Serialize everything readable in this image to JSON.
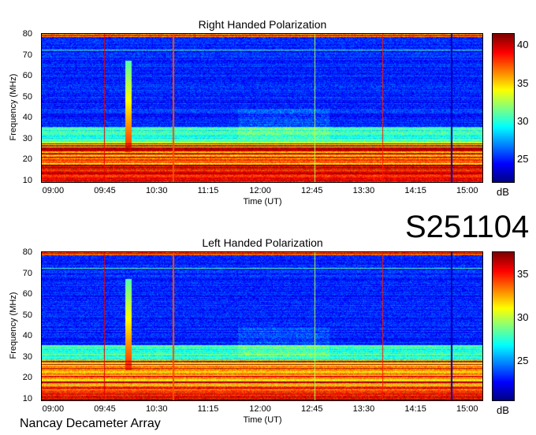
{
  "event_id": "S251104",
  "observatory": "Nancay Decameter Array",
  "chart_data": [
    {
      "type": "heatmap",
      "title": "Right Handed Polarization",
      "xlabel": "Time (UT)",
      "ylabel": "Frequency (MHz)",
      "x_ticks": [
        "09:00",
        "09:45",
        "10:30",
        "11:15",
        "12:00",
        "12:45",
        "13:30",
        "14:15",
        "15:00"
      ],
      "y_ticks": [
        "10",
        "20",
        "30",
        "40",
        "50",
        "60",
        "70",
        "80"
      ],
      "xlim": [
        "08:50",
        "15:13"
      ],
      "ylim": [
        9.5,
        80.5
      ],
      "colorbar": {
        "label": "dB",
        "ticks": [
          "25",
          "30",
          "35",
          "40"
        ],
        "range": [
          22,
          41.5
        ],
        "colormap": "jet"
      }
    },
    {
      "type": "heatmap",
      "title": "Left Handed Polarization",
      "xlabel": "Time (UT)",
      "ylabel": "Frequency (MHz)",
      "x_ticks": [
        "09:00",
        "09:45",
        "10:30",
        "11:15",
        "12:00",
        "12:45",
        "13:30",
        "14:15",
        "15:00"
      ],
      "y_ticks": [
        "10",
        "20",
        "30",
        "40",
        "50",
        "60",
        "70",
        "80"
      ],
      "xlim": [
        "08:50",
        "15:13"
      ],
      "ylim": [
        9.5,
        80.5
      ],
      "colorbar": {
        "label": "dB",
        "ticks": [
          "25",
          "30",
          "35"
        ],
        "range": [
          20.5,
          37.5
        ],
        "colormap": "jet"
      }
    }
  ]
}
